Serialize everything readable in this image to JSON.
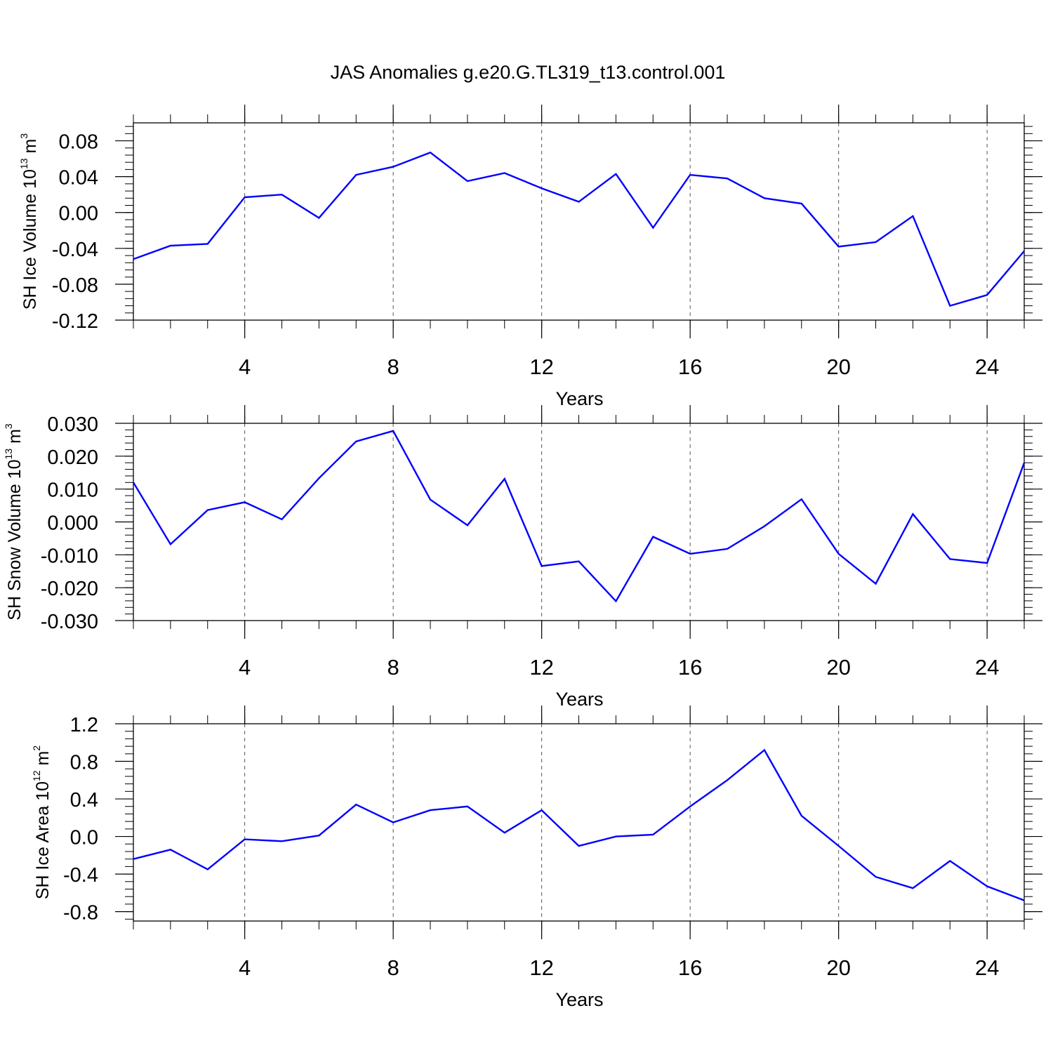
{
  "chart_data": [
    {
      "type": "line",
      "title": "JAS Anomalies g.e20.G.TL319_t13.control.001",
      "ylabel": {
        "text": "SH Ice Volume 10",
        "exp": "13",
        "unit": " m",
        "unit_exp": "3"
      },
      "xlabel": "Years",
      "xlim": [
        1,
        25
      ],
      "ylim": [
        -0.12,
        0.1
      ],
      "xticks": [
        4,
        8,
        12,
        16,
        20,
        24
      ],
      "xtick_labels": [
        "4",
        "8",
        "12",
        "16",
        "20",
        "24"
      ],
      "yticks": [
        -0.12,
        -0.08,
        -0.04,
        0.0,
        0.04,
        0.08
      ],
      "ytick_labels": [
        "-0.12",
        "-0.08",
        "-0.04",
        "0.00",
        "0.04",
        "0.08"
      ],
      "grid": "dashed vertical at major x ticks",
      "series": [
        {
          "name": "SH Ice Volume",
          "color": "#0000ff",
          "x": [
            1,
            2,
            3,
            4,
            5,
            6,
            7,
            8,
            9,
            10,
            11,
            12,
            13,
            14,
            15,
            16,
            17,
            18,
            19,
            20,
            21,
            22,
            23,
            24,
            25
          ],
          "values": [
            -0.052,
            -0.037,
            -0.035,
            0.017,
            0.02,
            -0.006,
            0.042,
            0.051,
            0.067,
            0.035,
            0.044,
            0.027,
            0.012,
            0.043,
            -0.017,
            0.042,
            0.038,
            0.016,
            0.01,
            -0.038,
            -0.033,
            -0.004,
            -0.104,
            -0.092,
            -0.043
          ]
        }
      ]
    },
    {
      "type": "line",
      "title": "",
      "ylabel": {
        "text": "SH Snow Volume 10",
        "exp": "13",
        "unit": " m",
        "unit_exp": "3"
      },
      "xlabel": "Years",
      "xlim": [
        1,
        25
      ],
      "ylim": [
        -0.03,
        0.03
      ],
      "xticks": [
        4,
        8,
        12,
        16,
        20,
        24
      ],
      "xtick_labels": [
        "4",
        "8",
        "12",
        "16",
        "20",
        "24"
      ],
      "yticks": [
        -0.03,
        -0.02,
        -0.01,
        0.0,
        0.01,
        0.02,
        0.03
      ],
      "ytick_labels": [
        "-0.030",
        "-0.020",
        "-0.010",
        "0.000",
        "0.010",
        "0.020",
        "0.030"
      ],
      "grid": "dashed vertical at major x ticks",
      "series": [
        {
          "name": "SH Snow Volume",
          "color": "#0000ff",
          "x": [
            1,
            2,
            3,
            4,
            5,
            6,
            7,
            8,
            9,
            10,
            11,
            12,
            13,
            14,
            15,
            16,
            17,
            18,
            19,
            20,
            21,
            22,
            23,
            24,
            25
          ],
          "values": [
            0.012,
            -0.0068,
            0.0036,
            0.006,
            0.0008,
            0.0133,
            0.0245,
            0.0277,
            0.0068,
            -0.001,
            0.0131,
            -0.0134,
            -0.012,
            -0.0241,
            -0.0045,
            -0.0097,
            -0.0082,
            -0.0013,
            0.0069,
            -0.0097,
            -0.0188,
            0.0024,
            -0.0113,
            -0.0125,
            0.018
          ]
        }
      ]
    },
    {
      "type": "line",
      "title": "",
      "ylabel": {
        "text": "SH Ice Area 10",
        "exp": "12",
        "unit": " m",
        "unit_exp": "2"
      },
      "xlabel": "Years",
      "xlim": [
        1,
        25
      ],
      "ylim": [
        -0.9,
        1.2
      ],
      "xticks": [
        4,
        8,
        12,
        16,
        20,
        24
      ],
      "xtick_labels": [
        "4",
        "8",
        "12",
        "16",
        "20",
        "24"
      ],
      "yticks": [
        -0.8,
        -0.4,
        0.0,
        0.4,
        0.8,
        1.2
      ],
      "ytick_labels": [
        "-0.8",
        "-0.4",
        "0.0",
        "0.4",
        "0.8",
        "1.2"
      ],
      "grid": "dashed vertical at major x ticks",
      "series": [
        {
          "name": "SH Ice Area",
          "color": "#0000ff",
          "x": [
            1,
            2,
            3,
            4,
            5,
            6,
            7,
            8,
            9,
            10,
            11,
            12,
            13,
            14,
            15,
            16,
            17,
            18,
            19,
            20,
            21,
            22,
            23,
            24,
            25
          ],
          "values": [
            -0.24,
            -0.14,
            -0.35,
            -0.03,
            -0.05,
            0.01,
            0.34,
            0.15,
            0.28,
            0.32,
            0.04,
            0.28,
            -0.1,
            0.0,
            0.02,
            0.32,
            0.6,
            0.92,
            0.22,
            -0.1,
            -0.43,
            -0.55,
            -0.26,
            -0.53,
            -0.68
          ]
        }
      ]
    }
  ]
}
